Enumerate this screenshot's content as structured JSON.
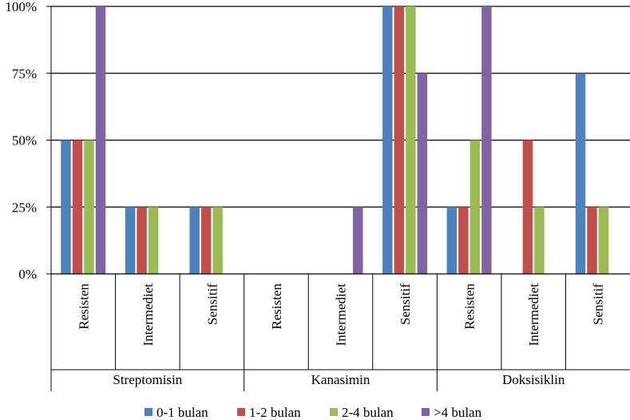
{
  "chart_data": {
    "type": "bar",
    "groups": [
      {
        "label": "Streptomisin",
        "categories": [
          "Resisten",
          "Intermediet",
          "Sensitif"
        ]
      },
      {
        "label": "Kanasimin",
        "categories": [
          "Resisten",
          "Intermediet",
          "Sensitif"
        ]
      },
      {
        "label": "Doksisiklin",
        "categories": [
          "Resisten",
          "Intermediet",
          "Sensitif"
        ]
      }
    ],
    "series": [
      {
        "name": "0-1 bulan",
        "color": "#4F81BD",
        "values": [
          50,
          25,
          25,
          0,
          0,
          100,
          25,
          0,
          75
        ]
      },
      {
        "name": "1-2 bulan",
        "color": "#C0504D",
        "values": [
          50,
          25,
          25,
          0,
          0,
          100,
          25,
          50,
          25
        ]
      },
      {
        "name": "2-4 bulan",
        "color": "#9BBB59",
        "values": [
          50,
          25,
          25,
          0,
          0,
          100,
          50,
          25,
          25
        ]
      },
      {
        "name": ">4 bulan",
        "color": "#8064A2",
        "values": [
          100,
          0,
          0,
          0,
          25,
          75,
          100,
          0,
          0
        ]
      }
    ],
    "yticks": [
      "0%",
      "25%",
      "50%",
      "75%",
      "100%"
    ],
    "ylim": [
      0,
      100
    ],
    "grid": true,
    "legend_position": "bottom"
  }
}
